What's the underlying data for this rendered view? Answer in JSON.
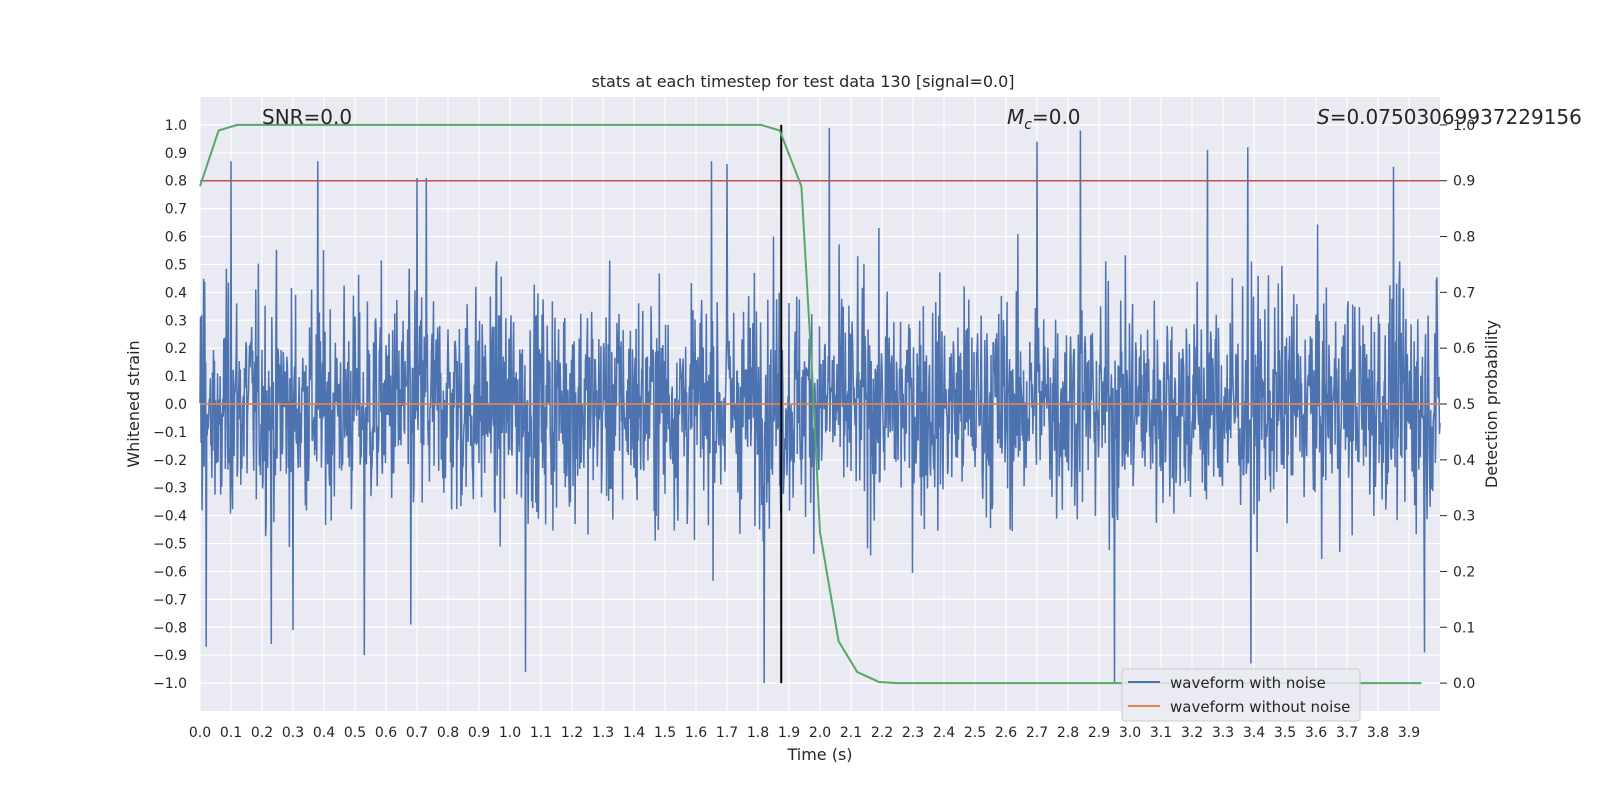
{
  "chart_data": {
    "type": "line",
    "title": "stats at each timestep for test data 130 [signal=0.0]",
    "xlabel": "Time (s)",
    "ylabel": "Whitened strain",
    "y2label": "Detection probability",
    "xlim": [
      0.0,
      4.0
    ],
    "ylim": [
      -1.1,
      1.1
    ],
    "y2lim": [
      -0.05,
      1.05
    ],
    "x_ticks": [
      0.0,
      0.1,
      0.2,
      0.3,
      0.4,
      0.5,
      0.6,
      0.7,
      0.8,
      0.9,
      1.0,
      1.1,
      1.2,
      1.3,
      1.4,
      1.5,
      1.6,
      1.7,
      1.8,
      1.9,
      2.0,
      2.1,
      2.2,
      2.3,
      2.4,
      2.5,
      2.6,
      2.7,
      2.8,
      2.9,
      3.0,
      3.1,
      3.2,
      3.3,
      3.4,
      3.5,
      3.6,
      3.7,
      3.8,
      3.9
    ],
    "x_tick_labels": [
      "0.0",
      "0.1",
      "0.2",
      "0.3",
      "0.4",
      "0.5",
      "0.6",
      "0.7",
      "0.8",
      "0.9",
      "1.0",
      "1.1",
      "1.2",
      "1.3",
      "1.4",
      "1.5",
      "1.6",
      "1.7",
      "1.8",
      "1.9",
      "2.0",
      "2.1",
      "2.2",
      "2.3",
      "2.4",
      "2.5",
      "2.6",
      "2.7",
      "2.8",
      "2.9",
      "3.0",
      "3.1",
      "3.2",
      "3.3",
      "3.4",
      "3.5",
      "3.6",
      "3.7",
      "3.8",
      "3.9"
    ],
    "y_ticks": [
      1.0,
      0.9,
      0.8,
      0.7,
      0.6,
      0.5,
      0.4,
      0.3,
      0.2,
      0.1,
      0.0,
      -0.1,
      -0.2,
      -0.3,
      -0.4,
      -0.5,
      -0.6,
      -0.7,
      -0.8,
      -0.9,
      -1.0
    ],
    "y_tick_labels": [
      "1.0",
      "0.9",
      "0.8",
      "0.7",
      "0.6",
      "0.5",
      "0.4",
      "0.3",
      "0.2",
      "0.1",
      "0.0",
      "−0.1",
      "−0.2",
      "−0.3",
      "−0.4",
      "−0.5",
      "−0.6",
      "−0.7",
      "−0.8",
      "−0.9",
      "−1.0"
    ],
    "y2_ticks": [
      1.0,
      0.9,
      0.8,
      0.7,
      0.6,
      0.5,
      0.4,
      0.3,
      0.2,
      0.1,
      0.0
    ],
    "y2_tick_labels": [
      "1.0",
      "0.9",
      "0.8",
      "0.7",
      "0.6",
      "0.5",
      "0.4",
      "0.3",
      "0.2",
      "0.1",
      "0.0"
    ],
    "annotations": {
      "snr": "SNR=0.0",
      "mc_symbol": "M",
      "mc_sub": "c",
      "mc_value": "=0.0",
      "s_symbol": "S",
      "s_value": "=0.07503069937229156"
    },
    "grid": true,
    "legend_position": "lower-right",
    "legend": [
      {
        "label": "waveform with noise",
        "color": "#4c72b0"
      },
      {
        "label": "waveform without noise",
        "color": "#dd8452"
      }
    ],
    "series": [
      {
        "name": "waveform with noise",
        "axis": "left",
        "color": "#4c72b0",
        "kind": "noise",
        "x_range": [
          0.0,
          4.0
        ],
        "approx_abs_max": 1.0,
        "peaks": [
          [
            0.02,
            -0.87
          ],
          [
            0.1,
            0.87
          ],
          [
            0.23,
            -0.86
          ],
          [
            0.3,
            -0.81
          ],
          [
            0.38,
            0.87
          ],
          [
            0.53,
            -0.9
          ],
          [
            0.68,
            -0.79
          ],
          [
            0.7,
            0.81
          ],
          [
            0.73,
            0.81
          ],
          [
            1.05,
            -0.96
          ],
          [
            1.65,
            0.87
          ],
          [
            1.7,
            0.86
          ],
          [
            1.82,
            -1.0
          ],
          [
            1.85,
            0.6
          ],
          [
            2.03,
            0.99
          ],
          [
            2.7,
            0.94
          ],
          [
            2.84,
            0.98
          ],
          [
            2.95,
            -1.0
          ],
          [
            3.25,
            0.91
          ],
          [
            3.38,
            0.92
          ],
          [
            3.39,
            -0.93
          ],
          [
            3.85,
            0.85
          ],
          [
            3.95,
            -0.89
          ]
        ]
      },
      {
        "name": "waveform without noise",
        "axis": "left",
        "color": "#dd8452",
        "x": [
          0.0,
          4.0
        ],
        "values": [
          0.0,
          0.0
        ]
      },
      {
        "name": "detection probability",
        "axis": "right",
        "color": "#55a868",
        "x": [
          0.0,
          0.06,
          0.12,
          0.19,
          0.25,
          0.5,
          1.0,
          1.5,
          1.7,
          1.81,
          1.87,
          1.94,
          1.975,
          2.0,
          2.06,
          2.12,
          2.19,
          2.25,
          3.0,
          3.94
        ],
        "values": [
          0.89,
          0.99,
          1.0,
          1.0,
          1.0,
          1.0,
          1.0,
          1.0,
          1.0,
          1.0,
          0.99,
          0.89,
          0.55,
          0.27,
          0.075,
          0.02,
          0.002,
          0.0,
          0.0,
          0.0
        ]
      }
    ],
    "reference_lines": [
      {
        "orientation": "horizontal",
        "axis": "right",
        "value": 0.9,
        "color": "#c44e52"
      },
      {
        "orientation": "vertical",
        "value": 1.875,
        "from": -1.0,
        "to": 1.0,
        "color": "#000000"
      }
    ]
  }
}
